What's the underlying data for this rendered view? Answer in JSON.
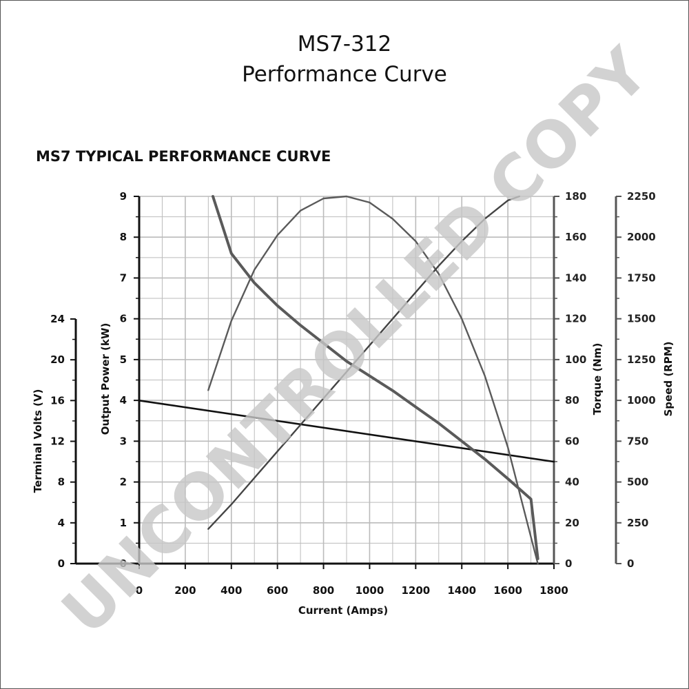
{
  "header": {
    "title_line1": "MS7-312",
    "title_line2": "Performance Curve",
    "subtitle": "MS7 TYPICAL PERFORMANCE CURVE"
  },
  "watermark": "UNCONTROLLED COPY",
  "colors": {
    "voltage": "#111111",
    "torque": "#444444",
    "power": "#5a5a5a",
    "speed": "#5a5a5a",
    "grid": "#bbbbbb",
    "axis": "#111111",
    "right_axes": "#555555"
  },
  "chart_data": {
    "type": "line",
    "xlabel": "Current (Amps)",
    "x_range": [
      0,
      1800
    ],
    "x_ticks": [
      0,
      200,
      400,
      600,
      800,
      1000,
      1200,
      1400,
      1600,
      1800
    ],
    "axes": {
      "terminal_volts": {
        "label": "Terminal Volts (V)",
        "range": [
          0,
          24
        ],
        "ticks": [
          0,
          4,
          8,
          12,
          16,
          20,
          24
        ]
      },
      "output_power": {
        "label": "Output Power (kW)",
        "range": [
          0,
          9
        ],
        "ticks": [
          0,
          1,
          2,
          3,
          4,
          5,
          6,
          7,
          8,
          9
        ]
      },
      "torque": {
        "label": "Torque (Nm)",
        "range": [
          0,
          180
        ],
        "ticks": [
          0,
          20,
          40,
          60,
          80,
          100,
          120,
          140,
          160,
          180
        ]
      },
      "speed": {
        "label": "Speed (RPM)",
        "range": [
          0,
          2250
        ],
        "ticks": [
          0,
          250,
          500,
          750,
          1000,
          1250,
          1500,
          1750,
          2000,
          2250
        ]
      }
    },
    "grid": true,
    "series": [
      {
        "key": "voltage",
        "axis": "terminal_volts",
        "x": [
          0,
          1800
        ],
        "y": [
          16.0,
          10.0
        ]
      },
      {
        "key": "speed",
        "axis": "speed",
        "x": [
          320,
          400,
          500,
          600,
          700,
          800,
          900,
          1000,
          1100,
          1200,
          1300,
          1400,
          1500,
          1600,
          1700,
          1730
        ],
        "y": [
          2250,
          1900,
          1720,
          1580,
          1460,
          1350,
          1240,
          1150,
          1060,
          960,
          860,
          750,
          640,
          520,
          395,
          30
        ]
      },
      {
        "key": "power",
        "axis": "output_power",
        "x": [
          300,
          400,
          500,
          600,
          700,
          800,
          900,
          1000,
          1100,
          1200,
          1300,
          1400,
          1500,
          1600,
          1700,
          1730
        ],
        "y": [
          4.25,
          5.95,
          7.2,
          8.05,
          8.65,
          8.95,
          9.0,
          8.85,
          8.45,
          7.9,
          7.1,
          6.0,
          4.6,
          2.85,
          0.65,
          0.0
        ]
      },
      {
        "key": "torque",
        "axis": "torque",
        "x": [
          300,
          400,
          500,
          600,
          700,
          800,
          900,
          1000,
          1100,
          1200,
          1300,
          1400,
          1500,
          1600,
          1650
        ],
        "y": [
          17,
          29,
          42,
          55,
          68,
          81,
          94,
          107,
          120,
          133,
          146,
          158,
          169,
          178,
          180
        ]
      }
    ]
  }
}
